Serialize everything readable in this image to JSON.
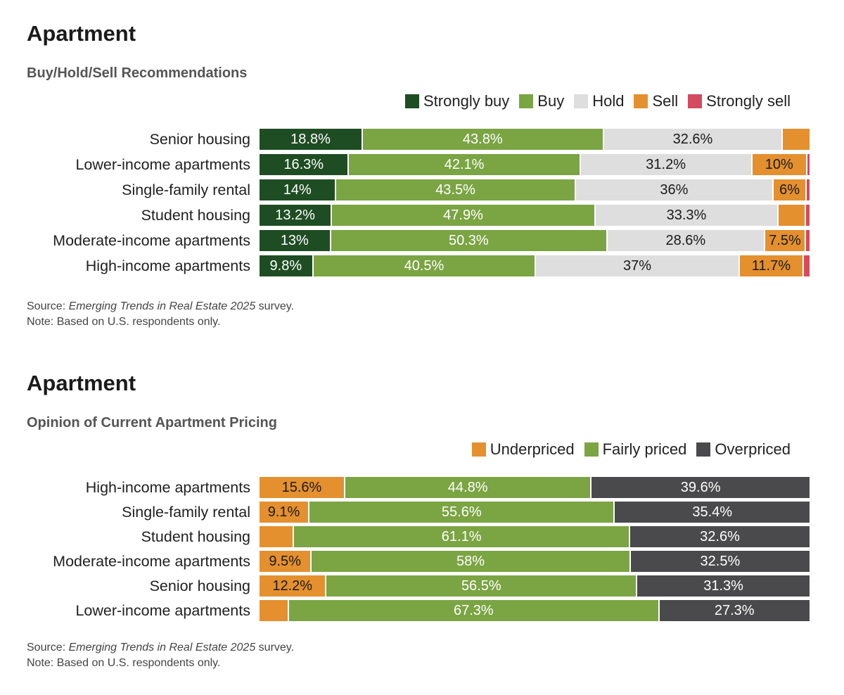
{
  "chart_data": [
    {
      "type": "bar",
      "orientation": "horizontal-stacked-100",
      "title": "Apartment",
      "subtitle": "Buy/Hold/Sell Recommendations",
      "categories": [
        "Senior housing",
        "Lower-income apartments",
        "Single-family rental",
        "Student housing",
        "Moderate-income apartments",
        "High-income apartments"
      ],
      "series": [
        {
          "name": "Strongly buy",
          "color": "#1f4d23",
          "text_color": "#ffffff",
          "values": [
            18.8,
            16.3,
            14,
            13.2,
            13,
            9.8
          ],
          "labels": [
            "18.8%",
            "16.3%",
            "14%",
            "13.2%",
            "13%",
            "9.8%"
          ]
        },
        {
          "name": "Buy",
          "color": "#7ba443",
          "text_color": "#ffffff",
          "values": [
            43.8,
            42.1,
            43.5,
            47.9,
            50.3,
            40.5
          ],
          "labels": [
            "43.8%",
            "42.1%",
            "43.5%",
            "47.9%",
            "50.3%",
            "40.5%"
          ]
        },
        {
          "name": "Hold",
          "color": "#dedede",
          "text_color": "#1a1a1a",
          "values": [
            32.6,
            31.2,
            36,
            33.3,
            28.6,
            37
          ],
          "labels": [
            "32.6%",
            "31.2%",
            "36%",
            "33.3%",
            "28.6%",
            "37%"
          ]
        },
        {
          "name": "Sell",
          "color": "#e4902e",
          "text_color": "#1a1a1a",
          "values": [
            4.8,
            10,
            6,
            5,
            7.5,
            11.7
          ],
          "labels": [
            "",
            "10%",
            "6%",
            "",
            "7.5%",
            "11.7%"
          ]
        },
        {
          "name": "Strongly sell",
          "color": "#d44a5e",
          "text_color": "#1a1a1a",
          "values": [
            0,
            0.4,
            0.5,
            0.6,
            0.6,
            1.0
          ],
          "labels": [
            "",
            "",
            "",
            "",
            "",
            ""
          ]
        }
      ],
      "xlim": [
        0,
        100
      ],
      "legend_position": "top-right",
      "source_prefix": "Source: ",
      "source_title": "Emerging Trends in Real Estate 2025",
      "source_suffix": " survey.",
      "note": "Note: Based on U.S. respondents only."
    },
    {
      "type": "bar",
      "orientation": "horizontal-stacked-100",
      "title": "Apartment",
      "subtitle": "Opinion of Current Apartment Pricing",
      "categories": [
        "High-income apartments",
        "Single-family rental",
        "Student housing",
        "Moderate-income apartments",
        "Senior housing",
        "Lower-income apartments"
      ],
      "series": [
        {
          "name": "Underpriced",
          "color": "#e4902e",
          "text_color": "#1a1a1a",
          "values": [
            15.6,
            9.1,
            6.3,
            9.5,
            12.2,
            5.4
          ],
          "labels": [
            "15.6%",
            "9.1%",
            "",
            "9.5%",
            "12.2%",
            ""
          ]
        },
        {
          "name": "Fairly priced",
          "color": "#7ba443",
          "text_color": "#ffffff",
          "values": [
            44.8,
            55.6,
            61.1,
            58,
            56.5,
            67.3
          ],
          "labels": [
            "44.8%",
            "55.6%",
            "61.1%",
            "58%",
            "56.5%",
            "67.3%"
          ]
        },
        {
          "name": "Overpriced",
          "color": "#4a4a4c",
          "text_color": "#ffffff",
          "values": [
            39.6,
            35.4,
            32.6,
            32.5,
            31.3,
            27.3
          ],
          "labels": [
            "39.6%",
            "35.4%",
            "32.6%",
            "32.5%",
            "31.3%",
            "27.3%"
          ]
        }
      ],
      "xlim": [
        0,
        100
      ],
      "legend_position": "top-right",
      "source_prefix": "Source: ",
      "source_title": "Emerging Trends in Real Estate 2025",
      "source_suffix": " survey.",
      "note": "Note: Based on U.S. respondents only."
    }
  ]
}
